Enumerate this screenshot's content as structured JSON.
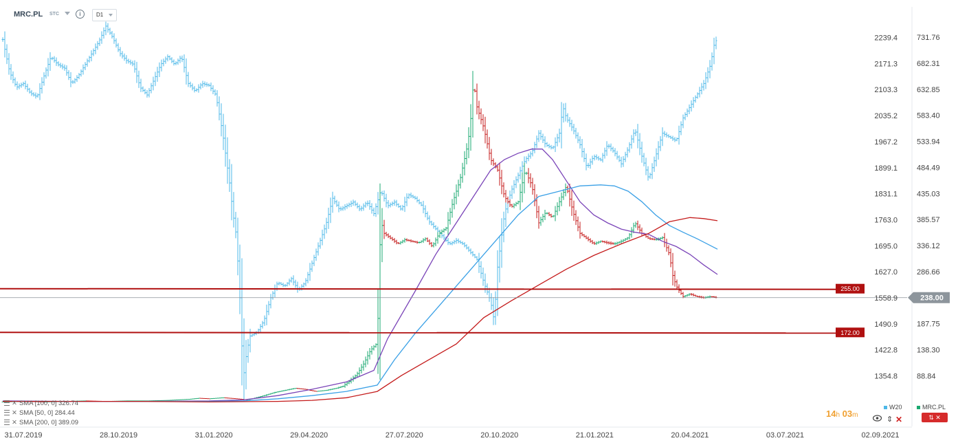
{
  "header": {
    "symbol": "MRC.PL",
    "instrument_type": "STC",
    "timeframe": "D1"
  },
  "price_axis_left": [
    "2239.4",
    "2171.3",
    "2103.3",
    "2035.2",
    "1967.2",
    "1899.1",
    "1831.1",
    "1763.0",
    "1695.0",
    "1627.0",
    "1558.9",
    "1490.9",
    "1422.8",
    "1354.8"
  ],
  "price_axis_right": [
    "731.76",
    "682.31",
    "632.85",
    "583.40",
    "533.94",
    "484.49",
    "435.03",
    "385.57",
    "336.12",
    "286.66",
    "187.75",
    "138.30",
    "88.84"
  ],
  "levels": [
    {
      "label": "255.00",
      "value": 255.0,
      "color": "#b01010"
    },
    {
      "label": "172.00",
      "value": 172.0,
      "color": "#b01010"
    }
  ],
  "current_price": {
    "label": "238.00",
    "value": 238.0
  },
  "dates": [
    "31.07.2019",
    "28.10.2019",
    "31.01.2020",
    "29.04.2020",
    "27.07.2020",
    "20.10.2020",
    "21.01.2021",
    "20.04.2021",
    "03.07.2021",
    "02.09.2021"
  ],
  "indicators": [
    {
      "label": "SMA [100, 0] 326.74",
      "color": "#3aa0e6"
    },
    {
      "label": "SMA [50, 0] 284.44",
      "color": "#7a44b8"
    },
    {
      "label": "SMA [200, 0] 389.09",
      "color": "#c41a1a"
    }
  ],
  "legend": [
    {
      "label": "W20",
      "color": "#4db8e8"
    },
    {
      "label": "MRC.PL",
      "color": "#1aa870"
    }
  ],
  "timer": {
    "hours": "14",
    "h": "h",
    "minutes": "03",
    "m": "m"
  },
  "controls": {
    "arrows": "⇕",
    "close": "✕",
    "red_button": "⇅ ✕"
  },
  "chart_data": {
    "type": "line",
    "series_names": [
      "MRC.PL",
      "W20",
      "SMA 50",
      "SMA 100",
      "SMA 200"
    ],
    "x": [
      "31.07.2019",
      "28.10.2019",
      "31.01.2020",
      "29.04.2020",
      "27.07.2020",
      "20.10.2020",
      "21.01.2021",
      "20.04.2021",
      "03.07.2021",
      "02.09.2021"
    ],
    "right_axis": {
      "unit": "PLN",
      "min": 40,
      "max": 760
    },
    "left_axis": {
      "min": 1300,
      "max": 2260
    },
    "series": [
      {
        "name": "MRC.PL",
        "axis": "right",
        "color": "#1aa870",
        "points": [
          [
            0,
            40
          ],
          [
            30,
            41
          ],
          [
            60,
            40
          ],
          [
            90,
            41
          ],
          [
            120,
            42
          ],
          [
            150,
            41
          ],
          [
            180,
            42
          ],
          [
            210,
            42
          ],
          [
            240,
            43
          ],
          [
            270,
            45
          ],
          [
            285,
            47
          ],
          [
            300,
            46
          ],
          [
            320,
            48
          ],
          [
            340,
            46
          ],
          [
            355,
            44
          ],
          [
            365,
            47
          ],
          [
            380,
            52
          ],
          [
            395,
            58
          ],
          [
            410,
            62
          ],
          [
            425,
            66
          ],
          [
            440,
            64
          ],
          [
            455,
            60
          ],
          [
            470,
            62
          ],
          [
            485,
            66
          ],
          [
            495,
            70
          ],
          [
            505,
            80
          ],
          [
            515,
            92
          ],
          [
            525,
            112
          ],
          [
            535,
            138
          ],
          [
            545,
            152
          ],
          [
            550,
            385
          ],
          [
            555,
            360
          ],
          [
            565,
            350
          ],
          [
            575,
            340
          ],
          [
            585,
            348
          ],
          [
            595,
            345
          ],
          [
            605,
            342
          ],
          [
            615,
            350
          ],
          [
            625,
            335
          ],
          [
            635,
            360
          ],
          [
            645,
            370
          ],
          [
            655,
            420
          ],
          [
            665,
            460
          ],
          [
            675,
            520
          ],
          [
            680,
            560
          ],
          [
            685,
            650
          ],
          [
            690,
            600
          ],
          [
            700,
            560
          ],
          [
            710,
            500
          ],
          [
            720,
            480
          ],
          [
            730,
            430
          ],
          [
            740,
            410
          ],
          [
            750,
            420
          ],
          [
            760,
            480
          ],
          [
            770,
            450
          ],
          [
            780,
            380
          ],
          [
            790,
            400
          ],
          [
            800,
            390
          ],
          [
            810,
            420
          ],
          [
            820,
            450
          ],
          [
            830,
            400
          ],
          [
            840,
            360
          ],
          [
            850,
            350
          ],
          [
            860,
            340
          ],
          [
            870,
            345
          ],
          [
            880,
            342
          ],
          [
            890,
            340
          ],
          [
            900,
            345
          ],
          [
            910,
            352
          ],
          [
            920,
            380
          ],
          [
            930,
            360
          ],
          [
            940,
            350
          ],
          [
            950,
            348
          ],
          [
            960,
            352
          ],
          [
            970,
            320
          ],
          [
            975,
            280
          ],
          [
            980,
            260
          ],
          [
            990,
            240
          ],
          [
            1000,
            245
          ],
          [
            1010,
            240
          ],
          [
            1020,
            238
          ],
          [
            1030,
            240
          ],
          [
            1040,
            238
          ]
        ]
      },
      {
        "name": "W20",
        "axis": "left",
        "color": "#4db8e8",
        "points": [
          [
            0,
            2235
          ],
          [
            10,
            2150
          ],
          [
            20,
            2110
          ],
          [
            30,
            2120
          ],
          [
            40,
            2095
          ],
          [
            50,
            2085
          ],
          [
            60,
            2140
          ],
          [
            70,
            2190
          ],
          [
            80,
            2170
          ],
          [
            90,
            2160
          ],
          [
            100,
            2120
          ],
          [
            110,
            2140
          ],
          [
            120,
            2170
          ],
          [
            130,
            2200
          ],
          [
            140,
            2230
          ],
          [
            150,
            2270
          ],
          [
            160,
            2240
          ],
          [
            170,
            2200
          ],
          [
            180,
            2180
          ],
          [
            190,
            2170
          ],
          [
            200,
            2110
          ],
          [
            210,
            2090
          ],
          [
            220,
            2130
          ],
          [
            230,
            2170
          ],
          [
            240,
            2190
          ],
          [
            250,
            2170
          ],
          [
            260,
            2190
          ],
          [
            270,
            2120
          ],
          [
            280,
            2100
          ],
          [
            290,
            2120
          ],
          [
            300,
            2115
          ],
          [
            310,
            2090
          ],
          [
            320,
            1990
          ],
          [
            330,
            1860
          ],
          [
            335,
            1780
          ],
          [
            340,
            1720
          ],
          [
            345,
            1560
          ],
          [
            350,
            1350
          ],
          [
            355,
            1420
          ],
          [
            360,
            1460
          ],
          [
            370,
            1470
          ],
          [
            380,
            1500
          ],
          [
            390,
            1560
          ],
          [
            400,
            1600
          ],
          [
            410,
            1590
          ],
          [
            420,
            1610
          ],
          [
            430,
            1580
          ],
          [
            440,
            1600
          ],
          [
            450,
            1650
          ],
          [
            460,
            1700
          ],
          [
            470,
            1750
          ],
          [
            480,
            1820
          ],
          [
            490,
            1790
          ],
          [
            500,
            1800
          ],
          [
            510,
            1810
          ],
          [
            520,
            1790
          ],
          [
            530,
            1810
          ],
          [
            540,
            1780
          ],
          [
            550,
            1840
          ],
          [
            560,
            1800
          ],
          [
            570,
            1810
          ],
          [
            580,
            1790
          ],
          [
            590,
            1830
          ],
          [
            600,
            1820
          ],
          [
            610,
            1800
          ],
          [
            620,
            1760
          ],
          [
            630,
            1740
          ],
          [
            640,
            1720
          ],
          [
            650,
            1700
          ],
          [
            660,
            1710
          ],
          [
            670,
            1700
          ],
          [
            680,
            1680
          ],
          [
            690,
            1660
          ],
          [
            700,
            1600
          ],
          [
            710,
            1550
          ],
          [
            715,
            1500
          ],
          [
            720,
            1640
          ],
          [
            730,
            1780
          ],
          [
            740,
            1840
          ],
          [
            750,
            1880
          ],
          [
            760,
            1920
          ],
          [
            770,
            1940
          ],
          [
            780,
            1990
          ],
          [
            790,
            1960
          ],
          [
            800,
            1950
          ],
          [
            810,
            1990
          ],
          [
            815,
            2060
          ],
          [
            820,
            2030
          ],
          [
            830,
            2000
          ],
          [
            840,
            1960
          ],
          [
            850,
            1900
          ],
          [
            860,
            1930
          ],
          [
            870,
            1920
          ],
          [
            880,
            1960
          ],
          [
            890,
            1940
          ],
          [
            900,
            1910
          ],
          [
            910,
            1950
          ],
          [
            920,
            2000
          ],
          [
            930,
            1930
          ],
          [
            940,
            1870
          ],
          [
            950,
            1930
          ],
          [
            960,
            1990
          ],
          [
            970,
            1980
          ],
          [
            980,
            1970
          ],
          [
            990,
            2030
          ],
          [
            1000,
            2060
          ],
          [
            1010,
            2090
          ],
          [
            1020,
            2120
          ],
          [
            1030,
            2170
          ],
          [
            1035,
            2220
          ],
          [
            1040,
            2240
          ]
        ]
      },
      {
        "name": "SMA 50",
        "axis": "right",
        "color": "#7a44b8",
        "points": [
          [
            0,
            42
          ],
          [
            100,
            41
          ],
          [
            200,
            41
          ],
          [
            300,
            42
          ],
          [
            350,
            44
          ],
          [
            400,
            52
          ],
          [
            450,
            64
          ],
          [
            500,
            78
          ],
          [
            540,
            100
          ],
          [
            560,
            160
          ],
          [
            600,
            250
          ],
          [
            630,
            320
          ],
          [
            660,
            380
          ],
          [
            690,
            440
          ],
          [
            710,
            480
          ],
          [
            730,
            500
          ],
          [
            750,
            512
          ],
          [
            770,
            520
          ],
          [
            785,
            520
          ],
          [
            800,
            500
          ],
          [
            820,
            460
          ],
          [
            840,
            420
          ],
          [
            860,
            395
          ],
          [
            880,
            380
          ],
          [
            900,
            368
          ],
          [
            920,
            362
          ],
          [
            940,
            358
          ],
          [
            960,
            345
          ],
          [
            980,
            335
          ],
          [
            1000,
            320
          ],
          [
            1020,
            300
          ],
          [
            1040,
            282
          ]
        ]
      },
      {
        "name": "SMA 100",
        "axis": "right",
        "color": "#3aa0e6",
        "points": [
          [
            0,
            41
          ],
          [
            100,
            41
          ],
          [
            200,
            41
          ],
          [
            300,
            41
          ],
          [
            350,
            42
          ],
          [
            400,
            46
          ],
          [
            450,
            52
          ],
          [
            500,
            60
          ],
          [
            545,
            72
          ],
          [
            570,
            120
          ],
          [
            600,
            170
          ],
          [
            640,
            230
          ],
          [
            680,
            290
          ],
          [
            720,
            350
          ],
          [
            750,
            395
          ],
          [
            780,
            430
          ],
          [
            810,
            440
          ],
          [
            840,
            450
          ],
          [
            870,
            452
          ],
          [
            890,
            450
          ],
          [
            910,
            440
          ],
          [
            930,
            420
          ],
          [
            950,
            395
          ],
          [
            970,
            375
          ],
          [
            990,
            362
          ],
          [
            1010,
            350
          ],
          [
            1040,
            330
          ]
        ]
      },
      {
        "name": "SMA 200",
        "axis": "right",
        "color": "#c41a1a",
        "points": [
          [
            0,
            41
          ],
          [
            200,
            41
          ],
          [
            300,
            40
          ],
          [
            400,
            41
          ],
          [
            450,
            43
          ],
          [
            500,
            48
          ],
          [
            545,
            60
          ],
          [
            580,
            90
          ],
          [
            620,
            120
          ],
          [
            660,
            150
          ],
          [
            700,
            200
          ],
          [
            740,
            232
          ],
          [
            780,
            262
          ],
          [
            820,
            292
          ],
          [
            860,
            318
          ],
          [
            900,
            340
          ],
          [
            940,
            360
          ],
          [
            970,
            382
          ],
          [
            1000,
            390
          ],
          [
            1020,
            388
          ],
          [
            1040,
            384
          ]
        ]
      }
    ]
  }
}
